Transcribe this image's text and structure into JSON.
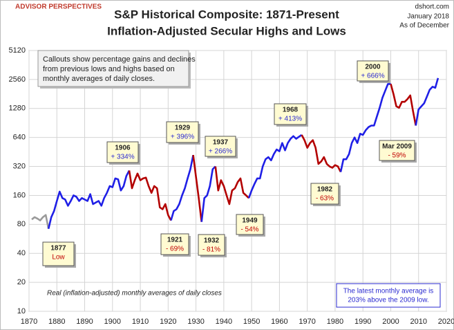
{
  "brand": "ADVISOR PERSPECTIVES",
  "source": {
    "site": "dshort.com",
    "date": "January 2018",
    "as_of": "As of December"
  },
  "chart_data": {
    "type": "line",
    "title": "S&P Historical Composite: 1871-Present",
    "subtitle": "Inflation-Adjusted Secular Highs and Lows",
    "log_scale": true,
    "grid": true,
    "xlim": [
      1870,
      2020
    ],
    "xticks": [
      1870,
      1880,
      1890,
      1900,
      1910,
      1920,
      1930,
      1940,
      1950,
      1960,
      1970,
      1980,
      1990,
      2000,
      2010,
      2020
    ],
    "ylim": [
      10,
      5120
    ],
    "yticks": [
      10,
      20,
      40,
      80,
      160,
      320,
      640,
      1280,
      2560,
      5120
    ],
    "series": [
      {
        "color": "#9a9a9a",
        "x": [
          1871,
          1872,
          1873,
          1874,
          1875,
          1876,
          1877
        ],
        "values": [
          90,
          95,
          92,
          88,
          95,
          100,
          72
        ]
      },
      {
        "color": "#1f1fe6",
        "x": [
          1877,
          1878,
          1879,
          1880,
          1881,
          1882,
          1883,
          1884,
          1885,
          1886,
          1887,
          1888,
          1889,
          1890,
          1891,
          1892,
          1893,
          1894,
          1895,
          1896,
          1897,
          1898,
          1899,
          1900,
          1901,
          1902,
          1903,
          1904,
          1905,
          1906
        ],
        "values": [
          72,
          95,
          110,
          140,
          175,
          150,
          145,
          125,
          140,
          160,
          155,
          140,
          150,
          145,
          140,
          165,
          130,
          135,
          140,
          125,
          150,
          170,
          200,
          195,
          240,
          235,
          180,
          200,
          255,
          290
        ]
      },
      {
        "color": "#b30000",
        "x": [
          1906,
          1907,
          1908,
          1909,
          1910,
          1911,
          1912,
          1913,
          1914,
          1915,
          1916,
          1917,
          1918,
          1919,
          1920,
          1921
        ],
        "values": [
          290,
          190,
          230,
          270,
          230,
          240,
          245,
          200,
          170,
          200,
          190,
          120,
          115,
          130,
          100,
          88
        ]
      },
      {
        "color": "#1f1fe6",
        "x": [
          1921,
          1922,
          1923,
          1924,
          1925,
          1926,
          1927,
          1928,
          1929
        ],
        "values": [
          88,
          110,
          115,
          130,
          160,
          190,
          240,
          300,
          420
        ]
      },
      {
        "color": "#b30000",
        "x": [
          1929,
          1930,
          1931,
          1932
        ],
        "values": [
          420,
          250,
          150,
          85
        ]
      },
      {
        "color": "#1f1fe6",
        "x": [
          1932,
          1933,
          1934,
          1935,
          1936,
          1937
        ],
        "values": [
          85,
          150,
          160,
          200,
          300,
          320
        ]
      },
      {
        "color": "#b30000",
        "x": [
          1937,
          1938,
          1939,
          1940,
          1941,
          1942,
          1943,
          1944,
          1945,
          1946,
          1947,
          1948,
          1949
        ],
        "values": [
          320,
          180,
          230,
          200,
          160,
          130,
          180,
          190,
          220,
          240,
          170,
          160,
          150
        ]
      },
      {
        "color": "#1f1fe6",
        "x": [
          1949,
          1950,
          1951,
          1952,
          1953,
          1954,
          1955,
          1956,
          1957,
          1958,
          1959,
          1960,
          1961,
          1962,
          1963,
          1964,
          1965,
          1966,
          1967,
          1968
        ],
        "values": [
          150,
          180,
          210,
          240,
          240,
          320,
          380,
          400,
          370,
          430,
          480,
          460,
          560,
          470,
          560,
          620,
          660,
          620,
          650,
          680
        ]
      },
      {
        "color": "#b30000",
        "x": [
          1968,
          1969,
          1970,
          1971,
          1972,
          1973,
          1974,
          1975,
          1976,
          1977,
          1978,
          1979,
          1980,
          1981,
          1982
        ],
        "values": [
          680,
          600,
          500,
          560,
          600,
          500,
          340,
          360,
          400,
          340,
          320,
          310,
          330,
          320,
          280
        ]
      },
      {
        "color": "#1f1fe6",
        "x": [
          1982,
          1983,
          1984,
          1985,
          1986,
          1987,
          1988,
          1989,
          1990,
          1991,
          1992,
          1993,
          1994,
          1995,
          1996,
          1997,
          1998,
          1999,
          2000
        ],
        "values": [
          280,
          380,
          380,
          430,
          560,
          640,
          560,
          700,
          680,
          760,
          820,
          850,
          850,
          1050,
          1300,
          1650,
          1950,
          2300,
          2300
        ]
      },
      {
        "color": "#b30000",
        "x": [
          2000,
          2001,
          2002,
          2003,
          2004,
          2005,
          2006,
          2007,
          2008,
          2009
        ],
        "values": [
          2300,
          1800,
          1350,
          1300,
          1500,
          1500,
          1600,
          1750,
          1200,
          850
        ]
      },
      {
        "color": "#1f1fe6",
        "x": [
          2009,
          2010,
          2011,
          2012,
          2013,
          2014,
          2015,
          2016,
          2017
        ],
        "values": [
          850,
          1250,
          1350,
          1450,
          1700,
          2000,
          2150,
          2100,
          2650
        ]
      }
    ],
    "annotations": {
      "note": [
        "Callouts show percentage gains and declines",
        "from previous lows and highs based on",
        "monthly  averages of daily closes."
      ],
      "footnote": "Real (inflation-adjusted) monthly averages of daily closes",
      "latest": [
        "The latest monthly average is",
        "203% above  the 2009 low."
      ]
    },
    "callouts": [
      {
        "title": "1877",
        "text": "Low"
      },
      {
        "title": "1906",
        "text": "+ 334%"
      },
      {
        "title": "1921",
        "text": "- 69%"
      },
      {
        "title": "1929",
        "text": "+ 396%"
      },
      {
        "title": "1932",
        "text": "- 81%"
      },
      {
        "title": "1937",
        "text": "+ 266%"
      },
      {
        "title": "1949",
        "text": "- 54%"
      },
      {
        "title": "1968",
        "text": "+ 413%"
      },
      {
        "title": "1982",
        "text": "- 63%"
      },
      {
        "title": "2000",
        "text": "+ 666%"
      },
      {
        "title": "Mar 2009",
        "text": "- 59%"
      }
    ]
  }
}
